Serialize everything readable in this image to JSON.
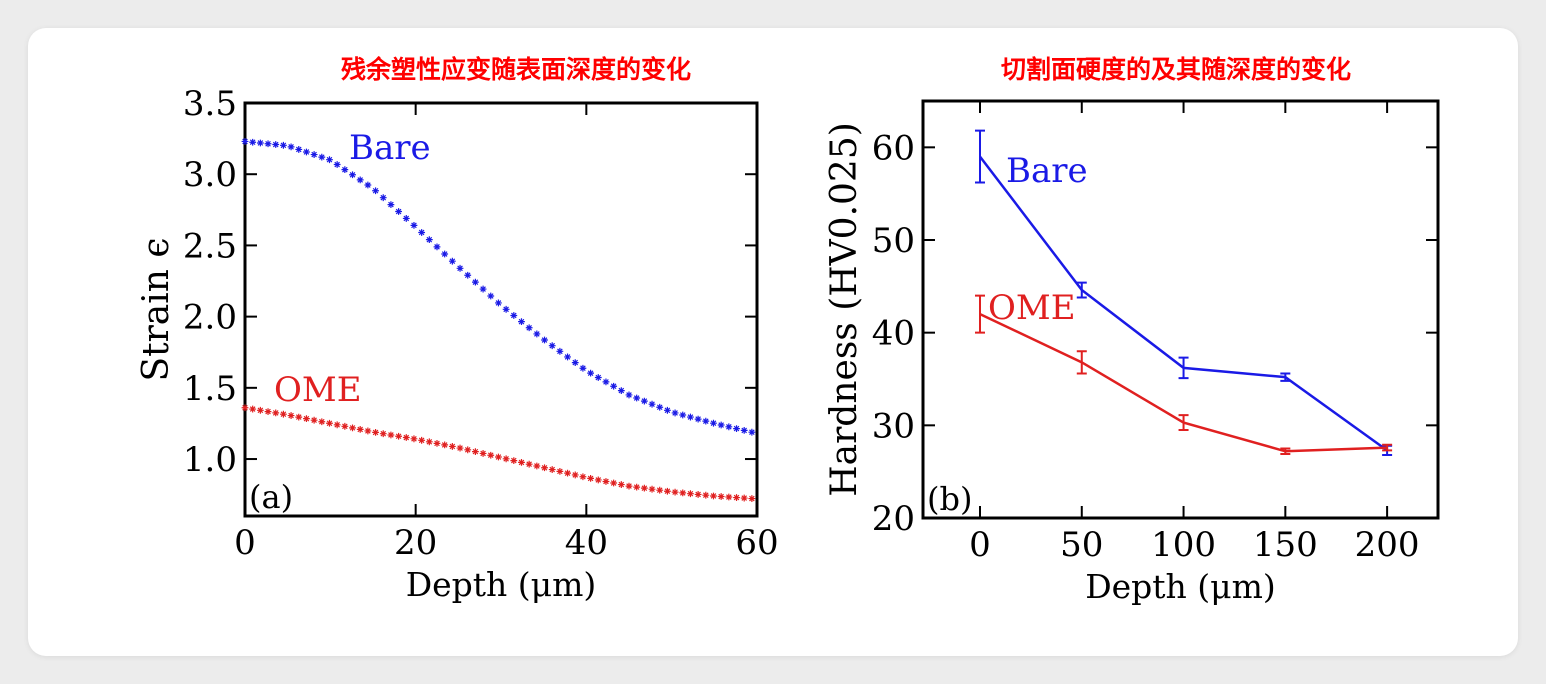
{
  "colors": {
    "bare": "#1a1ae6",
    "ome": "#e02020",
    "title": "#ff0000",
    "axis": "#000000"
  },
  "chart_data": [
    {
      "id": "a",
      "type": "scatter",
      "title": "残余塑性应变随表面深度的变化",
      "panel_label": "(a)",
      "xlabel": "Depth (μm)",
      "ylabel": "Strain ϵ",
      "xlim": [
        0,
        60
      ],
      "ylim": [
        0.6,
        3.5
      ],
      "xticks": [
        0,
        20,
        40,
        60
      ],
      "yticks": [
        1.0,
        1.5,
        2.0,
        2.5,
        3.0,
        3.5
      ],
      "ytick_labels": [
        "1.0",
        "1.5",
        "2.0",
        "2.5",
        "3.0",
        "3.5"
      ],
      "marker": "asterisk",
      "series": [
        {
          "name": "Bare",
          "color": "#1a1ae6",
          "x": [
            0,
            5,
            10,
            15,
            20,
            25,
            30,
            35,
            40,
            45,
            50,
            55,
            60
          ],
          "y": [
            3.23,
            3.2,
            3.1,
            2.9,
            2.63,
            2.35,
            2.08,
            1.84,
            1.62,
            1.45,
            1.33,
            1.25,
            1.18
          ]
        },
        {
          "name": "OME",
          "color": "#e02020",
          "x": [
            0,
            5,
            10,
            15,
            20,
            25,
            30,
            35,
            40,
            45,
            50,
            55,
            60
          ],
          "y": [
            1.36,
            1.31,
            1.25,
            1.19,
            1.14,
            1.08,
            1.01,
            0.94,
            0.87,
            0.81,
            0.77,
            0.74,
            0.72
          ]
        }
      ]
    },
    {
      "id": "b",
      "type": "line",
      "title": "切割面硬度的及其随深度的变化",
      "panel_label": "(b)",
      "xlabel": "Depth (μm)",
      "ylabel": "Hardness (HV0.025)",
      "xlim": [
        -28,
        225
      ],
      "ylim": [
        20,
        65
      ],
      "xticks": [
        0,
        50,
        100,
        150,
        200
      ],
      "yticks": [
        20,
        30,
        40,
        50,
        60
      ],
      "series": [
        {
          "name": "Bare",
          "color": "#1a1ae6",
          "x": [
            0,
            50,
            100,
            150,
            200
          ],
          "y": [
            59,
            44.6,
            36.2,
            35.2,
            27.3
          ],
          "err": [
            2.8,
            0.8,
            1.1,
            0.4,
            0.5
          ]
        },
        {
          "name": "OME",
          "color": "#e02020",
          "x": [
            0,
            50,
            100,
            150,
            200
          ],
          "y": [
            42,
            36.8,
            30.3,
            27.2,
            27.6
          ],
          "err": [
            2.0,
            1.2,
            0.8,
            0.3,
            0.3
          ]
        }
      ]
    }
  ]
}
